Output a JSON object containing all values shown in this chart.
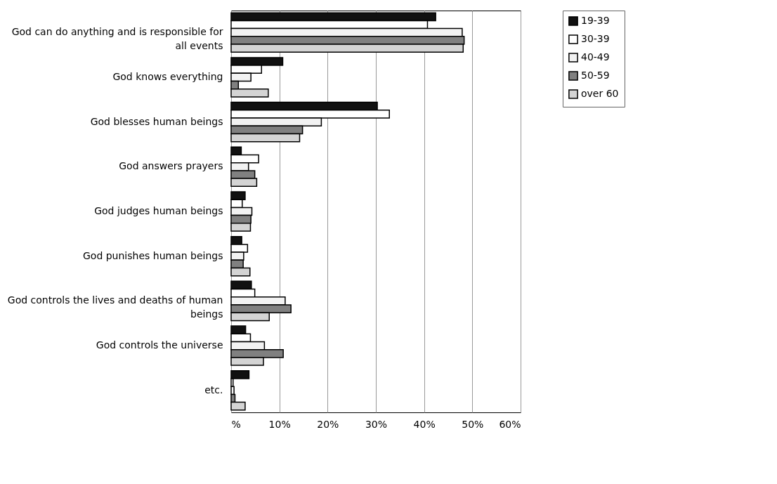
{
  "chart_data": {
    "type": "bar",
    "orientation": "horizontal",
    "categories": [
      "God can do anything and is responsible for all events",
      "God knows everything",
      "God blesses human beings",
      "God answers prayers",
      "God judges human beings",
      "God punishes human beings",
      "God controls the lives and deaths of human beings",
      "God controls the universe",
      "etc."
    ],
    "series": [
      {
        "name": "19-39",
        "color": "#111111",
        "values": [
          42.4,
          10.7,
          30.3,
          2.1,
          2.9,
          2.2,
          4.2,
          3.0,
          3.7
        ]
      },
      {
        "name": "30-39",
        "color": "#ffffff",
        "values": [
          40.7,
          6.3,
          32.8,
          5.7,
          2.3,
          3.4,
          4.9,
          4.0,
          0.4
        ]
      },
      {
        "name": "40-49",
        "color": "#f2f2f2",
        "values": [
          47.9,
          4.1,
          18.7,
          3.6,
          4.3,
          2.6,
          11.2,
          6.9,
          0.6
        ]
      },
      {
        "name": "50-59",
        "color": "#808080",
        "values": [
          48.3,
          1.5,
          14.8,
          4.9,
          4.1,
          2.5,
          12.4,
          10.8,
          0.8
        ]
      },
      {
        "name": "over 60",
        "color": "#d4d4d4",
        "values": [
          48.1,
          7.7,
          14.2,
          5.3,
          4.0,
          3.9,
          7.9,
          6.7,
          2.9
        ]
      }
    ],
    "xlim": [
      0,
      60
    ],
    "xticks": [
      {
        "value": 0,
        "label": "%"
      },
      {
        "value": 10,
        "label": "10%"
      },
      {
        "value": 20,
        "label": "20%"
      },
      {
        "value": 30,
        "label": "30%"
      },
      {
        "value": 40,
        "label": "40%"
      },
      {
        "value": 50,
        "label": "50%"
      },
      {
        "value": 60,
        "label": "60%"
      }
    ],
    "grid": "x",
    "legend": "right"
  }
}
